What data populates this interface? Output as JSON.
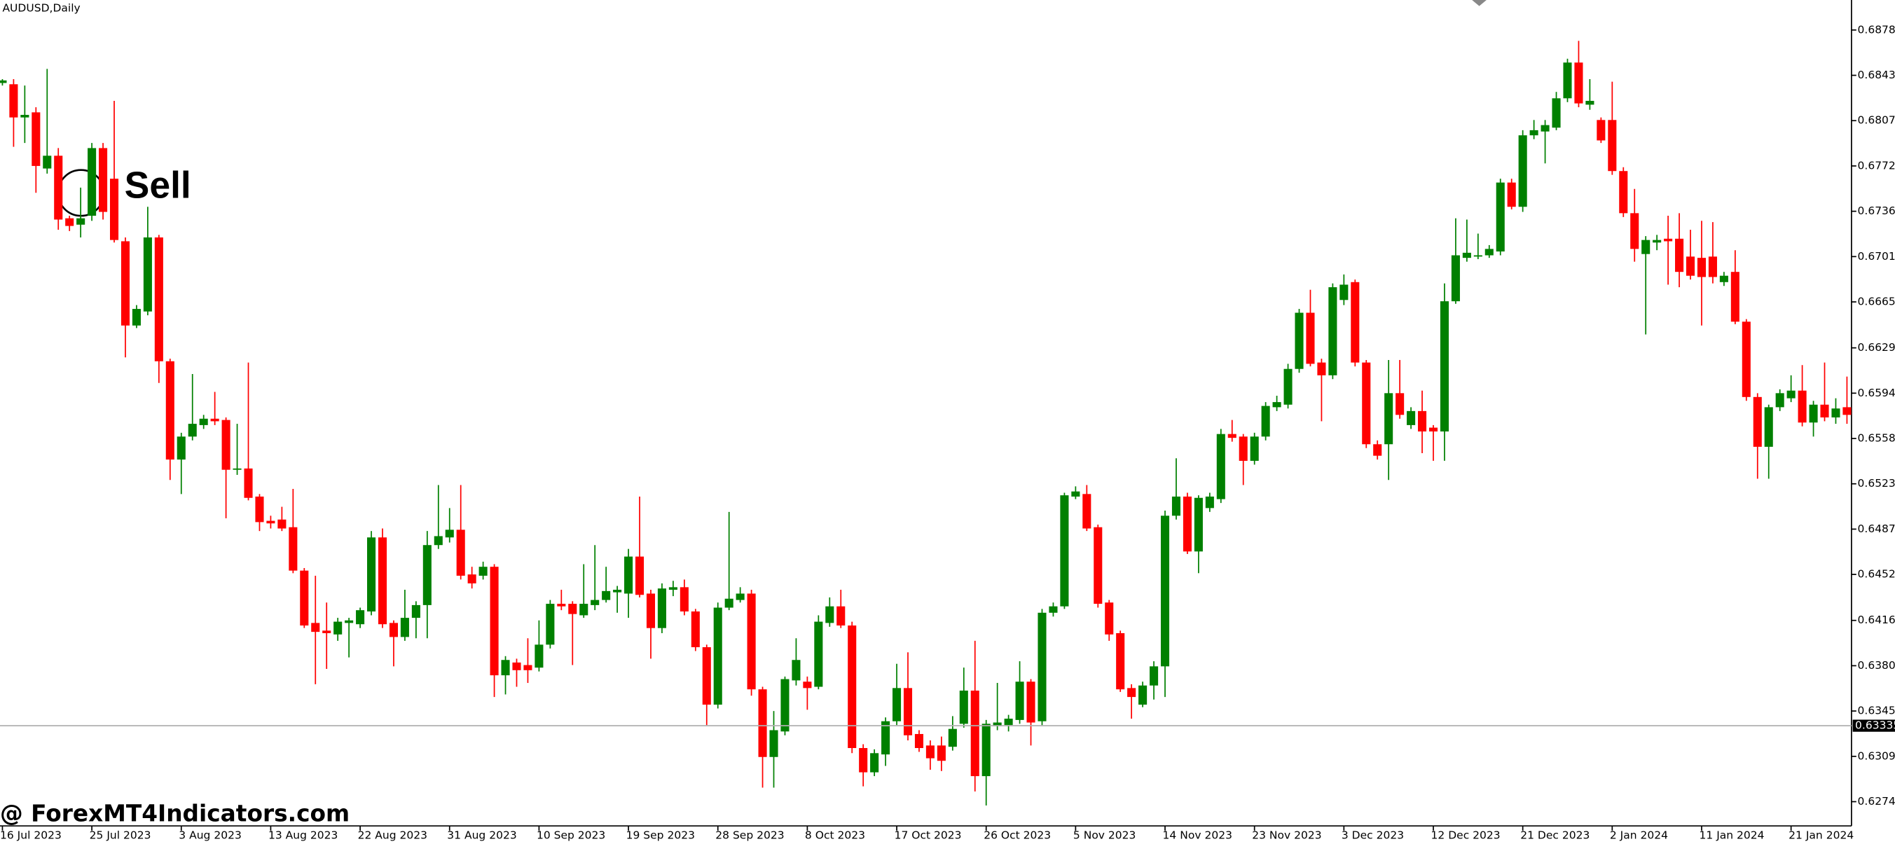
{
  "chart_data": {
    "type": "candlestick",
    "title": "AUDUSD,Daily",
    "annotation": "Sell",
    "up_color": "#008000",
    "down_color": "#ff0000",
    "grid": false,
    "current_price": 0.63335,
    "ylim": [
      0.6255,
      0.6902
    ],
    "yticks": [
      0.68785,
      {
        "value": 0.6843,
        "label": "0.68430"
      },
      0.68075,
      {
        "value": 0.6772,
        "label": "0.67720"
      },
      0.67365,
      {
        "value": 0.6701,
        "label": "0.67010"
      },
      0.66655,
      0.66295,
      {
        "value": 0.6594,
        "label": "0.65940"
      },
      0.65585,
      {
        "value": 0.6523,
        "label": "0.65230"
      },
      0.64875,
      {
        "value": 0.6452,
        "label": "0.64520"
      },
      {
        "value": 0.6416,
        "label": "0.64160"
      },
      0.63805,
      {
        "value": 0.6345,
        "label": "0.63450"
      },
      0.63095,
      {
        "value": 0.6274,
        "label": "0.62740"
      }
    ],
    "categories": [
      "16 Jul 2023",
      null,
      null,
      null,
      null,
      null,
      null,
      null,
      "25 Jul 2023",
      null,
      null,
      null,
      null,
      null,
      null,
      null,
      "3 Aug 2023",
      null,
      null,
      null,
      null,
      null,
      null,
      null,
      "13 Aug 2023",
      null,
      null,
      null,
      null,
      null,
      null,
      null,
      "22 Aug 2023",
      null,
      null,
      null,
      null,
      null,
      null,
      null,
      "31 Aug 2023",
      null,
      null,
      null,
      null,
      null,
      null,
      null,
      "10 Sep 2023",
      null,
      null,
      null,
      null,
      null,
      null,
      null,
      "19 Sep 2023",
      null,
      null,
      null,
      null,
      null,
      null,
      null,
      "28 Sep 2023",
      null,
      null,
      null,
      null,
      null,
      null,
      null,
      "8 Oct 2023",
      null,
      null,
      null,
      null,
      null,
      null,
      null,
      "17 Oct 2023",
      null,
      null,
      null,
      null,
      null,
      null,
      null,
      "26 Oct 2023",
      null,
      null,
      null,
      null,
      null,
      null,
      null,
      "5 Nov 2023",
      null,
      null,
      null,
      null,
      null,
      null,
      null,
      "14 Nov 2023",
      null,
      null,
      null,
      null,
      null,
      null,
      null,
      "23 Nov 2023",
      null,
      null,
      null,
      null,
      null,
      null,
      null,
      "3 Dec 2023",
      null,
      null,
      null,
      null,
      null,
      null,
      null,
      "12 Dec 2023",
      null,
      null,
      null,
      null,
      null,
      null,
      null,
      "21 Dec 2023",
      null,
      null,
      null,
      null,
      null,
      null,
      null,
      "2 Jan 2024",
      null,
      null,
      null,
      null,
      null,
      null,
      null,
      "11 Jan 2024",
      null,
      null,
      null,
      null,
      null,
      null,
      null,
      "21 Jan 2024",
      null,
      null,
      null,
      null,
      null
    ],
    "open": [
      0.6837,
      0.6836,
      0.681,
      0.6814,
      0.677,
      0.678,
      0.6731,
      0.6726,
      0.6733,
      0.6786,
      0.6762,
      0.6713,
      0.6647,
      0.6658,
      0.6716,
      0.6619,
      0.6542,
      0.656,
      0.6569,
      0.6574,
      0.6573,
      0.6534,
      0.6535,
      0.6513,
      0.6494,
      0.6495,
      0.6489,
      0.6455,
      0.6414,
      0.6408,
      0.6405,
      0.6414,
      0.6413,
      0.6423,
      0.6481,
      0.6414,
      0.6403,
      0.6418,
      0.6428,
      0.6475,
      0.6481,
      0.6487,
      0.6452,
      0.6451,
      0.6458,
      0.6373,
      0.6383,
      0.6381,
      0.6379,
      0.6397,
      0.6429,
      0.6429,
      0.642,
      0.6428,
      0.6432,
      0.6438,
      0.6437,
      0.6466,
      0.6437,
      0.641,
      0.644,
      0.6442,
      0.6423,
      0.6395,
      0.635,
      0.6426,
      0.6432,
      0.6437,
      0.6362,
      0.6309,
      0.6329,
      0.6369,
      0.6368,
      0.6364,
      0.6414,
      0.6427,
      0.6412,
      0.6316,
      0.6297,
      0.6311,
      0.6337,
      0.6363,
      0.6327,
      0.6318,
      0.6318,
      0.6317,
      0.6335,
      0.6361,
      0.6294,
      0.6333,
      0.6334,
      0.6338,
      0.6368,
      0.6337,
      0.6422,
      0.6427,
      0.6513,
      0.6515,
      0.6489,
      0.643,
      0.6406,
      0.6363,
      0.635,
      0.6365,
      0.638,
      0.6498,
      0.6513,
      0.647,
      0.6504,
      0.6511,
      0.6562,
      0.656,
      0.6541,
      0.656,
      0.6583,
      0.6585,
      0.6613,
      0.6657,
      0.6618,
      0.6608,
      0.6667,
      0.6681,
      0.6618,
      0.6554,
      0.6554,
      0.6594,
      0.6569,
      0.658,
      0.6567,
      0.6564,
      0.6666,
      0.67,
      0.6701,
      0.6702,
      0.6705,
      0.6759,
      0.674,
      0.6796,
      0.6799,
      0.6802,
      0.6825,
      0.6853,
      0.682,
      0.6808,
      0.6808,
      0.6768,
      0.6735,
      0.6703,
      0.6712,
      0.6715,
      0.6715,
      0.6701,
      0.67,
      0.6701,
      0.6681,
      0.6689,
      0.665,
      0.6591,
      0.6552,
      0.6583,
      0.659,
      0.6596,
      0.6571,
      0.6585,
      0.6575,
      0.6583
    ],
    "high": [
      0.684,
      0.684,
      0.6835,
      0.6818,
      0.6848,
      0.6786,
      0.6733,
      0.6755,
      0.679,
      0.679,
      0.6823,
      0.6716,
      0.6663,
      0.674,
      0.6718,
      0.6621,
      0.6563,
      0.6609,
      0.6577,
      0.6595,
      0.6575,
      0.657,
      0.6618,
      0.6515,
      0.6498,
      0.6505,
      0.6519,
      0.6457,
      0.6451,
      0.643,
      0.6418,
      0.6418,
      0.6426,
      0.6486,
      0.6488,
      0.6416,
      0.644,
      0.6431,
      0.6486,
      0.6522,
      0.6504,
      0.6522,
      0.6458,
      0.6462,
      0.646,
      0.6388,
      0.6386,
      0.6402,
      0.6416,
      0.6432,
      0.644,
      0.6431,
      0.646,
      0.6475,
      0.6458,
      0.6443,
      0.6472,
      0.6513,
      0.644,
      0.6445,
      0.6447,
      0.6448,
      0.6425,
      0.6397,
      0.643,
      0.6501,
      0.6442,
      0.644,
      0.6364,
      0.6345,
      0.6372,
      0.6402,
      0.6372,
      0.642,
      0.6434,
      0.644,
      0.6415,
      0.6319,
      0.6315,
      0.634,
      0.6382,
      0.6391,
      0.633,
      0.6322,
      0.6325,
      0.6341,
      0.6379,
      0.64,
      0.6338,
      0.6367,
      0.6342,
      0.6384,
      0.637,
      0.6425,
      0.643,
      0.6516,
      0.6521,
      0.6522,
      0.6491,
      0.6432,
      0.6408,
      0.6366,
      0.6368,
      0.6384,
      0.6502,
      0.6543,
      0.6516,
      0.6514,
      0.6516,
      0.6566,
      0.6573,
      0.6562,
      0.6563,
      0.6587,
      0.6592,
      0.6617,
      0.666,
      0.6675,
      0.6621,
      0.668,
      0.6687,
      0.6683,
      0.662,
      0.6557,
      0.662,
      0.662,
      0.6583,
      0.6596,
      0.6569,
      0.668,
      0.6731,
      0.673,
      0.6719,
      0.671,
      0.6762,
      0.6762,
      0.68,
      0.6808,
      0.6808,
      0.683,
      0.6856,
      0.687,
      0.684,
      0.681,
      0.6838,
      0.6771,
      0.6754,
      0.6717,
      0.6718,
      0.6733,
      0.6735,
      0.6722,
      0.6729,
      0.6728,
      0.6689,
      0.6706,
      0.6652,
      0.6594,
      0.6585,
      0.6597,
      0.6608,
      0.6616,
      0.6588,
      0.6618,
      0.659,
      0.6607
    ],
    "low": [
      0.6835,
      0.6787,
      0.679,
      0.6751,
      0.6766,
      0.6722,
      0.6721,
      0.6716,
      0.6729,
      0.673,
      0.6712,
      0.6622,
      0.6645,
      0.6655,
      0.6602,
      0.6526,
      0.6515,
      0.6557,
      0.6566,
      0.6569,
      0.6496,
      0.653,
      0.651,
      0.6486,
      0.6488,
      0.6486,
      0.6453,
      0.641,
      0.6366,
      0.6378,
      0.64,
      0.6387,
      0.641,
      0.642,
      0.641,
      0.638,
      0.64,
      0.6402,
      0.6402,
      0.6472,
      0.6477,
      0.6448,
      0.6441,
      0.6448,
      0.6356,
      0.6358,
      0.6364,
      0.6367,
      0.6376,
      0.6394,
      0.6424,
      0.6381,
      0.6418,
      0.6424,
      0.643,
      0.6422,
      0.6418,
      0.6434,
      0.6386,
      0.6406,
      0.6435,
      0.642,
      0.6392,
      0.6334,
      0.6347,
      0.6424,
      0.643,
      0.6357,
      0.6285,
      0.6285,
      0.6326,
      0.6365,
      0.6346,
      0.6362,
      0.6411,
      0.641,
      0.6312,
      0.6286,
      0.6294,
      0.6302,
      0.6334,
      0.6322,
      0.6313,
      0.6299,
      0.6298,
      0.6314,
      0.6332,
      0.6282,
      0.6271,
      0.633,
      0.6329,
      0.6335,
      0.6318,
      0.6334,
      0.6419,
      0.6425,
      0.6511,
      0.6486,
      0.6426,
      0.64,
      0.636,
      0.6339,
      0.6348,
      0.6354,
      0.6356,
      0.6495,
      0.6468,
      0.6453,
      0.6501,
      0.6508,
      0.6556,
      0.6522,
      0.6538,
      0.6557,
      0.658,
      0.6582,
      0.661,
      0.6615,
      0.6572,
      0.6605,
      0.6663,
      0.6615,
      0.6551,
      0.6542,
      0.6526,
      0.6574,
      0.6566,
      0.6547,
      0.6541,
      0.6541,
      0.6664,
      0.6697,
      0.6699,
      0.67,
      0.6702,
      0.6738,
      0.6736,
      0.6793,
      0.6774,
      0.68,
      0.6822,
      0.6818,
      0.6816,
      0.679,
      0.6765,
      0.6732,
      0.6697,
      0.664,
      0.6706,
      0.6679,
      0.6677,
      0.6683,
      0.6647,
      0.668,
      0.6678,
      0.6648,
      0.6588,
      0.6527,
      0.6527,
      0.658,
      0.6587,
      0.6568,
      0.656,
      0.6572,
      0.657,
      0.657
    ],
    "close": [
      0.6839,
      0.681,
      0.6812,
      0.6772,
      0.678,
      0.673,
      0.6725,
      0.6731,
      0.6786,
      0.6736,
      0.6714,
      0.6647,
      0.666,
      0.6716,
      0.6619,
      0.6542,
      0.656,
      0.657,
      0.6574,
      0.6572,
      0.6534,
      0.6535,
      0.6512,
      0.6493,
      0.6492,
      0.6488,
      0.6455,
      0.6412,
      0.6407,
      0.6406,
      0.6415,
      0.6416,
      0.6424,
      0.6481,
      0.6413,
      0.6403,
      0.6418,
      0.6428,
      0.6475,
      0.6482,
      0.6487,
      0.6451,
      0.6445,
      0.6458,
      0.6373,
      0.6385,
      0.6377,
      0.6377,
      0.6397,
      0.6429,
      0.6427,
      0.6421,
      0.6429,
      0.6432,
      0.6439,
      0.644,
      0.6466,
      0.6436,
      0.641,
      0.6441,
      0.6442,
      0.6423,
      0.6395,
      0.635,
      0.6426,
      0.6433,
      0.6437,
      0.6362,
      0.6309,
      0.633,
      0.637,
      0.6385,
      0.6363,
      0.6415,
      0.6427,
      0.6412,
      0.6316,
      0.6297,
      0.6312,
      0.6337,
      0.6363,
      0.6326,
      0.6316,
      0.6308,
      0.6306,
      0.6331,
      0.6361,
      0.6294,
      0.6335,
      0.6336,
      0.6339,
      0.6368,
      0.6336,
      0.6422,
      0.6427,
      0.6514,
      0.6517,
      0.6488,
      0.6429,
      0.6405,
      0.6362,
      0.6356,
      0.6365,
      0.638,
      0.6498,
      0.6513,
      0.647,
      0.6512,
      0.6513,
      0.6562,
      0.6559,
      0.6541,
      0.656,
      0.6584,
      0.6587,
      0.6613,
      0.6657,
      0.6617,
      0.6608,
      0.6677,
      0.6679,
      0.6618,
      0.6554,
      0.6545,
      0.6594,
      0.6577,
      0.658,
      0.6564,
      0.6564,
      0.6666,
      0.6702,
      0.6704,
      0.6702,
      0.6707,
      0.6759,
      0.674,
      0.6796,
      0.68,
      0.6804,
      0.6825,
      0.6853,
      0.6821,
      0.6823,
      0.6792,
      0.6768,
      0.6735,
      0.6707,
      0.6714,
      0.6714,
      0.6713,
      0.6689,
      0.6686,
      0.6685,
      0.6685,
      0.6686,
      0.665,
      0.6591,
      0.6552,
      0.6583,
      0.6594,
      0.6596,
      0.6571,
      0.6585,
      0.6575,
      0.6582,
      0.6577
    ]
  },
  "watermark": "@ ForexMT4Indicators.com"
}
